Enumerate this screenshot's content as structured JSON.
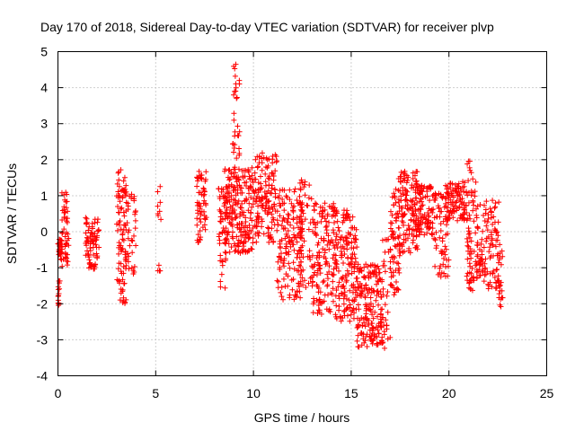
{
  "chart_data": {
    "type": "scatter",
    "title": "Day 170 of 2018, Sidereal Day-to-day VTEC variation (SDTVAR) for receiver plvp",
    "xlabel": "GPS time / hours",
    "ylabel": "SDTVAR / TECUs",
    "xlim": [
      0,
      25
    ],
    "ylim": [
      -4,
      5
    ],
    "xticks": [
      "0",
      "5",
      "10",
      "15",
      "20",
      "25"
    ],
    "yticks": [
      "-4",
      "-3",
      "-2",
      "-1",
      "0",
      "1",
      "2",
      "3",
      "4",
      "5"
    ],
    "grid": true,
    "marker": "plus",
    "color": "#ff0000",
    "clusters": [
      {
        "x": [
          0.0,
          0.1
        ],
        "y": [
          -2.1,
          -1.3
        ],
        "n": 14
      },
      {
        "x": [
          0.0,
          0.2
        ],
        "y": [
          -0.8,
          -0.2
        ],
        "n": 30
      },
      {
        "x": [
          0.2,
          0.55
        ],
        "y": [
          -1.0,
          1.1
        ],
        "n": 45
      },
      {
        "x": [
          1.4,
          2.1
        ],
        "y": [
          -1.1,
          0.4
        ],
        "n": 80
      },
      {
        "x": [
          3.0,
          3.5
        ],
        "y": [
          -2.0,
          1.8
        ],
        "n": 90
      },
      {
        "x": [
          3.4,
          4.0
        ],
        "y": [
          -1.2,
          1.1
        ],
        "n": 40
      },
      {
        "x": [
          5.1,
          5.3
        ],
        "y": [
          0.3,
          1.3
        ],
        "n": 8
      },
      {
        "x": [
          5.1,
          5.3
        ],
        "y": [
          -1.1,
          -0.9
        ],
        "n": 4
      },
      {
        "x": [
          7.1,
          7.6
        ],
        "y": [
          -0.3,
          1.7
        ],
        "n": 60
      },
      {
        "x": [
          8.2,
          8.6
        ],
        "y": [
          -1.6,
          1.2
        ],
        "n": 40
      },
      {
        "x": [
          8.5,
          10.0
        ],
        "y": [
          -0.6,
          1.8
        ],
        "n": 220
      },
      {
        "x": [
          8.9,
          9.3
        ],
        "y": [
          2.0,
          4.7
        ],
        "n": 30
      },
      {
        "x": [
          10.0,
          11.2
        ],
        "y": [
          -0.4,
          2.2
        ],
        "n": 140
      },
      {
        "x": [
          11.2,
          12.5
        ],
        "y": [
          -1.9,
          1.2
        ],
        "n": 160
      },
      {
        "x": [
          12.3,
          13.0
        ],
        "y": [
          -1.6,
          1.5
        ],
        "n": 50
      },
      {
        "x": [
          13.0,
          14.2
        ],
        "y": [
          -2.3,
          0.8
        ],
        "n": 150
      },
      {
        "x": [
          14.2,
          15.3
        ],
        "y": [
          -2.5,
          0.6
        ],
        "n": 160
      },
      {
        "x": [
          15.3,
          16.6
        ],
        "y": [
          -3.2,
          -0.9
        ],
        "n": 180
      },
      {
        "x": [
          16.6,
          17.0
        ],
        "y": [
          -3.4,
          -0.1
        ],
        "n": 30
      },
      {
        "x": [
          17.0,
          17.5
        ],
        "y": [
          -1.8,
          1.2
        ],
        "n": 70
      },
      {
        "x": [
          17.4,
          18.4
        ],
        "y": [
          -0.6,
          1.7
        ],
        "n": 130
      },
      {
        "x": [
          18.4,
          19.2
        ],
        "y": [
          -0.1,
          1.3
        ],
        "n": 90
      },
      {
        "x": [
          19.2,
          20.0
        ],
        "y": [
          -1.3,
          1.1
        ],
        "n": 70
      },
      {
        "x": [
          19.8,
          20.9
        ],
        "y": [
          0.3,
          1.4
        ],
        "n": 100
      },
      {
        "x": [
          20.9,
          21.4
        ],
        "y": [
          -1.7,
          2.0
        ],
        "n": 70
      },
      {
        "x": [
          21.4,
          22.6
        ],
        "y": [
          -1.6,
          0.9
        ],
        "n": 120
      },
      {
        "x": [
          22.5,
          22.8
        ],
        "y": [
          -2.1,
          -0.3
        ],
        "n": 20
      }
    ]
  }
}
